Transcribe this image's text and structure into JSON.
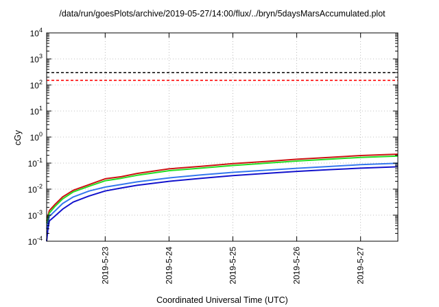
{
  "chart_data": {
    "type": "line",
    "title": "/data/run/goesPlots/archive/2019-05-27/14:00/flux/../bryn/5daysMarsAccumulated.plot",
    "xlabel": "Coordinated Universal Time (UTC)",
    "ylabel": "cGy",
    "y_scale": "log",
    "ylim": [
      0.0001,
      10000
    ],
    "xlim": [
      "2019-05-22T02:00",
      "2019-05-27T14:00"
    ],
    "x_tick_labels": [
      "2019-5-23",
      "2019-5-24",
      "2019-5-25",
      "2019-5-26",
      "2019-5-27"
    ],
    "x_tick_values": [
      "2019-05-23",
      "2019-05-24",
      "2019-05-25",
      "2019-05-26",
      "2019-05-27"
    ],
    "y_tick_exponents": [
      -4,
      -3,
      -2,
      -1,
      0,
      1,
      2,
      3,
      4
    ],
    "grid": true,
    "reference_lines": [
      {
        "value": 300,
        "color": "#000000",
        "style": "dashed"
      },
      {
        "value": 150,
        "color": "#ff0000",
        "style": "dashed"
      }
    ],
    "series": [
      {
        "color": "#cc1111",
        "x": [
          "2019-05-22T02:00",
          "2019-05-22T03:00",
          "2019-05-22T05:00",
          "2019-05-22T08:00",
          "2019-05-22T12:00",
          "2019-05-22T18:00",
          "2019-05-23T00:00",
          "2019-05-23T06:00",
          "2019-05-23T12:00",
          "2019-05-24T00:00",
          "2019-05-24T12:00",
          "2019-05-25T00:00",
          "2019-05-25T12:00",
          "2019-05-26T00:00",
          "2019-05-26T12:00",
          "2019-05-27T00:00",
          "2019-05-27T14:00"
        ],
        "y": [
          0.0006,
          0.0015,
          0.0025,
          0.005,
          0.009,
          0.015,
          0.025,
          0.03,
          0.04,
          0.06,
          0.075,
          0.095,
          0.115,
          0.14,
          0.165,
          0.195,
          0.22
        ]
      },
      {
        "color": "#22dd22",
        "x": [
          "2019-05-22T02:00",
          "2019-05-22T03:00",
          "2019-05-22T05:00",
          "2019-05-22T08:00",
          "2019-05-22T12:00",
          "2019-05-22T18:00",
          "2019-05-23T00:00",
          "2019-05-23T06:00",
          "2019-05-23T12:00",
          "2019-05-24T00:00",
          "2019-05-24T12:00",
          "2019-05-25T00:00",
          "2019-05-25T12:00",
          "2019-05-26T00:00",
          "2019-05-26T12:00",
          "2019-05-27T00:00",
          "2019-05-27T14:00"
        ],
        "y": [
          0.0005,
          0.0012,
          0.0021,
          0.0042,
          0.0078,
          0.013,
          0.021,
          0.026,
          0.034,
          0.051,
          0.064,
          0.081,
          0.098,
          0.12,
          0.14,
          0.165,
          0.185
        ]
      },
      {
        "color": "#3377ee",
        "x": [
          "2019-05-22T02:00",
          "2019-05-22T03:00",
          "2019-05-22T05:00",
          "2019-05-22T08:00",
          "2019-05-22T12:00",
          "2019-05-22T18:00",
          "2019-05-23T00:00",
          "2019-05-23T06:00",
          "2019-05-23T12:00",
          "2019-05-24T00:00",
          "2019-05-24T12:00",
          "2019-05-25T00:00",
          "2019-05-25T12:00",
          "2019-05-26T00:00",
          "2019-05-26T12:00",
          "2019-05-27T00:00",
          "2019-05-27T14:00"
        ],
        "y": [
          0.0003,
          0.0009,
          0.0014,
          0.0028,
          0.005,
          0.0085,
          0.012,
          0.015,
          0.019,
          0.027,
          0.035,
          0.044,
          0.053,
          0.063,
          0.074,
          0.087,
          0.099
        ]
      },
      {
        "color": "#1111cc",
        "x": [
          "2019-05-22T02:00",
          "2019-05-22T02:30",
          "2019-05-22T03:00",
          "2019-05-22T05:00",
          "2019-05-22T08:00",
          "2019-05-22T12:00",
          "2019-05-22T18:00",
          "2019-05-23T00:00",
          "2019-05-23T06:00",
          "2019-05-23T12:00",
          "2019-05-24T00:00",
          "2019-05-24T12:00",
          "2019-05-25T00:00",
          "2019-05-25T12:00",
          "2019-05-26T00:00",
          "2019-05-26T12:00",
          "2019-05-27T00:00",
          "2019-05-27T14:00"
        ],
        "y": [
          0.0001,
          0.0003,
          0.0006,
          0.0009,
          0.0017,
          0.0032,
          0.0055,
          0.0085,
          0.011,
          0.014,
          0.02,
          0.026,
          0.033,
          0.04,
          0.048,
          0.056,
          0.064,
          0.072
        ]
      }
    ]
  }
}
